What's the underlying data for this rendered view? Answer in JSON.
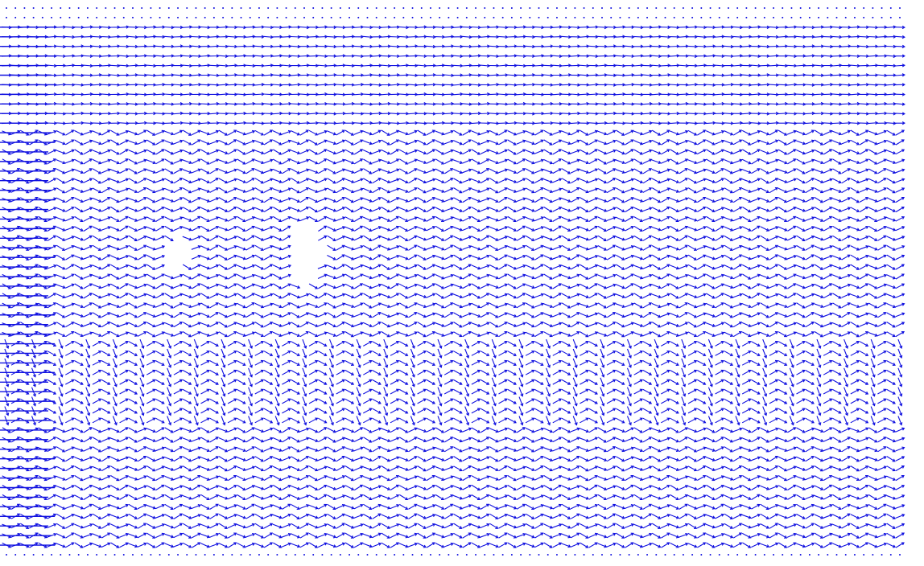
{
  "chart_data": {
    "type": "vector-field",
    "title": "",
    "xlabel": "",
    "ylabel": "",
    "grid": false,
    "legend": "none",
    "arrow_color": "#1010e0",
    "field": {
      "rows": 58,
      "cols": 100,
      "dominant_direction": "left-to-right",
      "top_rows_sparse": true,
      "bottom_row_sparse": true,
      "bands": [
        {
          "from_row": 0,
          "to_row": 1,
          "pattern": "dotted"
        },
        {
          "from_row": 2,
          "to_row": 12,
          "pattern": "horizontal"
        },
        {
          "from_row": 13,
          "to_row": 34,
          "pattern": "wavy"
        },
        {
          "from_row": 35,
          "to_row": 43,
          "pattern": "crosshatch"
        },
        {
          "from_row": 44,
          "to_row": 56,
          "pattern": "wavy"
        },
        {
          "from_row": 57,
          "to_row": 57,
          "pattern": "dotted"
        }
      ],
      "voids": [
        {
          "name": "large-void",
          "cx": 0.33,
          "cy": 0.45,
          "rx": 0.02,
          "ry": 0.06
        },
        {
          "name": "small-void-left",
          "cx": 0.19,
          "cy": 0.45,
          "rx": 0.015,
          "ry": 0.03
        }
      ]
    }
  }
}
